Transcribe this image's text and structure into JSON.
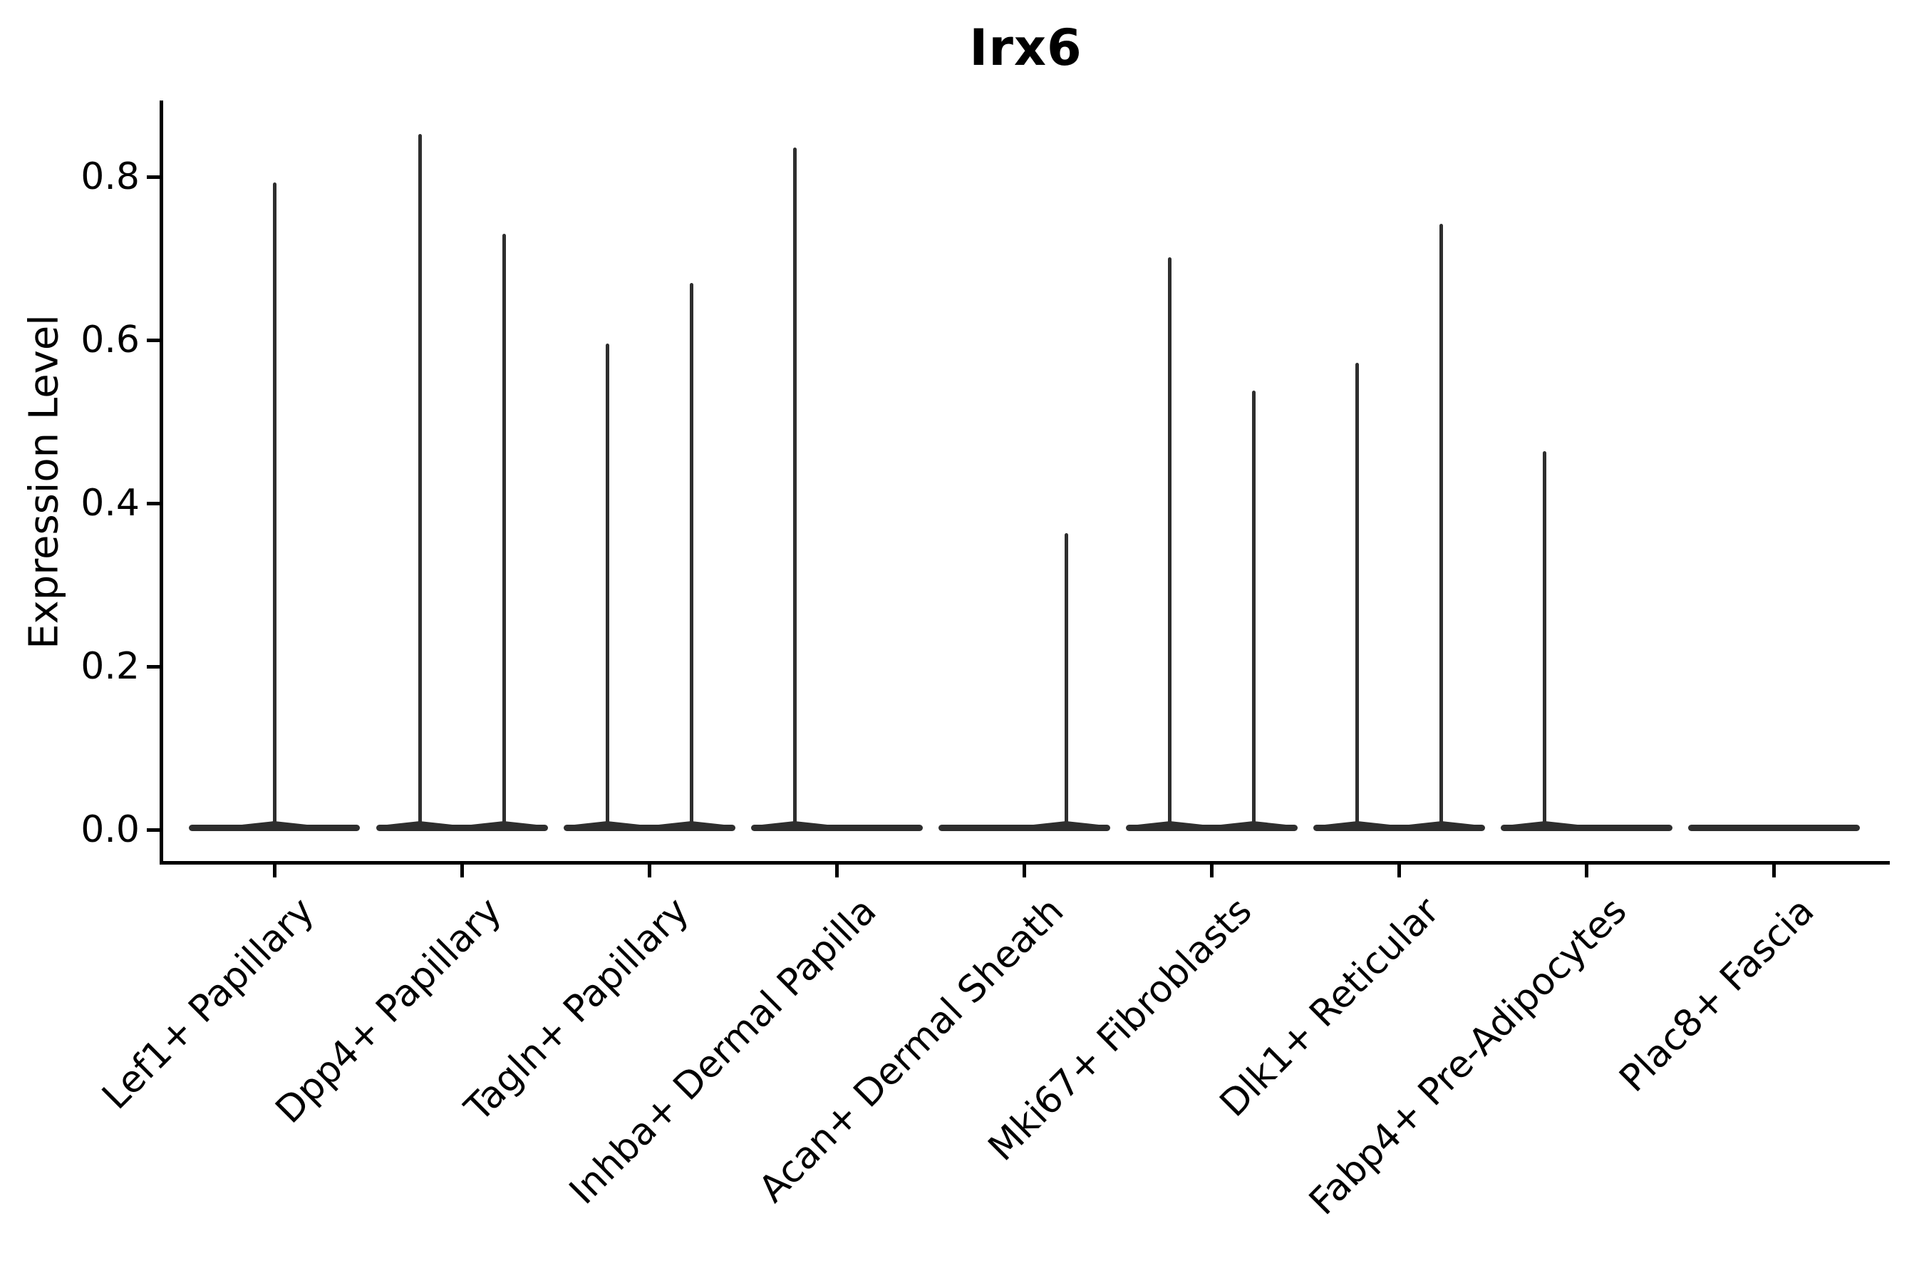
{
  "figure": {
    "background_color": "#ffffff",
    "line_color": "#2e2e2e",
    "axis_color": "#000000"
  },
  "chart_data": {
    "type": "violin",
    "title": "Irx6",
    "xlabel": "",
    "ylabel": "Expression Level",
    "ylim": [
      -0.04,
      0.89
    ],
    "yticks": [
      0.0,
      0.2,
      0.4,
      0.6,
      0.8
    ],
    "grid": false,
    "legend": "none",
    "categories": [
      "Lef1+ Papillary",
      "Dpp4+ Papillary",
      "Tagln+ Papillary",
      "Inhba+ Dermal Papilla",
      "Acan+ Dermal Sheath",
      "Mki67+ Fibroblasts",
      "Dlk1+ Reticular",
      "Fabp4+ Pre-Adipocytes",
      "Plac8+ Fascia"
    ],
    "description": "Violin plot of Irx6 expression per cell type; nearly all cells at 0 giving flat wide bases with thin spikes up to the maximum expressed values.",
    "violins": [
      {
        "category": "Lef1+ Papillary",
        "base_value": 0.0,
        "spikes": [
          {
            "offset_frac": 0.0,
            "max": 0.793
          }
        ]
      },
      {
        "category": "Dpp4+ Papillary",
        "base_value": 0.0,
        "spikes": [
          {
            "offset_frac": -0.224,
            "max": 0.852
          },
          {
            "offset_frac": 0.224,
            "max": 0.73
          }
        ]
      },
      {
        "category": "Tagln+ Papillary",
        "base_value": 0.0,
        "spikes": [
          {
            "offset_frac": -0.224,
            "max": 0.596
          },
          {
            "offset_frac": 0.224,
            "max": 0.67
          }
        ]
      },
      {
        "category": "Inhba+ Dermal Papilla",
        "base_value": 0.0,
        "spikes": [
          {
            "offset_frac": -0.224,
            "max": 0.836
          }
        ]
      },
      {
        "category": "Acan+ Dermal Sheath",
        "base_value": 0.0,
        "spikes": [
          {
            "offset_frac": 0.224,
            "max": 0.363
          }
        ]
      },
      {
        "category": "Mki67+ Fibroblasts",
        "base_value": 0.0,
        "spikes": [
          {
            "offset_frac": -0.224,
            "max": 0.701
          },
          {
            "offset_frac": 0.224,
            "max": 0.538
          }
        ]
      },
      {
        "category": "Dlk1+ Reticular",
        "base_value": 0.0,
        "spikes": [
          {
            "offset_frac": -0.224,
            "max": 0.572
          },
          {
            "offset_frac": 0.224,
            "max": 0.742
          }
        ]
      },
      {
        "category": "Fabp4+ Pre-Adipocytes",
        "base_value": 0.0,
        "spikes": [
          {
            "offset_frac": -0.224,
            "max": 0.464
          }
        ]
      },
      {
        "category": "Plac8+ Fascia",
        "base_value": 0.0,
        "spikes": []
      }
    ],
    "base_half_width_frac": 0.458
  }
}
